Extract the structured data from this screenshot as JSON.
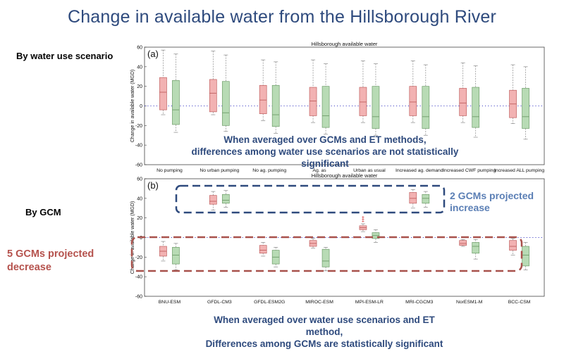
{
  "slide": {
    "title": "Change in available water from the Hillsborough River",
    "label_top": "By water use scenario",
    "label_bottom": "By GCM",
    "note_top": [
      "When averaged over GCMs and ET methods,",
      "differences among water use scenarios are not statistically",
      "significant"
    ],
    "note_bottom": [
      "When averaged over water use scenarios and ET",
      "method,",
      "Differences among GCMs are statistically significant"
    ],
    "callout_increase": [
      "2 GCMs projected",
      "increase"
    ],
    "callout_decrease": [
      "5 GCMs projected",
      "decrease"
    ]
  },
  "colors": {
    "red_fill": "#f2b2b2",
    "red_edge": "#c06060",
    "green_fill": "#b8dbb5",
    "green_edge": "#6f9d6a",
    "ref_line": "#4a4ac8",
    "dash_blue": "#2e4a7d",
    "dash_red": "#a8514b"
  },
  "chart_data": [
    {
      "type": "box",
      "panel": "(a)",
      "title": "Hillsborough available water",
      "ylabel": "Change in available water (MGD)",
      "ylim": [
        -60,
        60
      ],
      "yticks": [
        -60,
        -40,
        -20,
        0,
        20,
        40,
        60
      ],
      "reference_line": 0,
      "categories": [
        "No pumping",
        "No urban pumping",
        "No ag. pumping",
        "Ag. as usual",
        "Urban as usual",
        "Increased ag. demand",
        "Increased CWF pumping",
        "Increased ALL pumping"
      ],
      "tick_labels": [
        "No pumping",
        "No urban pumping",
        "No ag. pumping",
        "Ag. as",
        "Urban as usual",
        "Increased ag. demand",
        "Increased CWF pumping",
        "Increased ALL pumping"
      ],
      "series": [
        {
          "color": "red",
          "boxes": [
            {
              "wlo": -9,
              "q1": -4,
              "med": 14,
              "q3": 29,
              "whi": 57
            },
            {
              "wlo": -9,
              "q1": -6,
              "med": 13,
              "q3": 27,
              "whi": 56
            },
            {
              "wlo": -15,
              "q1": -8,
              "med": 6,
              "q3": 21,
              "whi": 47
            },
            {
              "wlo": -17,
              "q1": -10,
              "med": 5,
              "q3": 19,
              "whi": 47
            },
            {
              "wlo": -17,
              "q1": -10,
              "med": 4,
              "q3": 19,
              "whi": 46
            },
            {
              "wlo": -17,
              "q1": -10,
              "med": 4,
              "q3": 20,
              "whi": 46
            },
            {
              "wlo": -17,
              "q1": -10,
              "med": 3,
              "q3": 18,
              "whi": 44
            },
            {
              "wlo": -18,
              "q1": -12,
              "med": 2,
              "q3": 16,
              "whi": 42
            }
          ]
        },
        {
          "color": "green",
          "boxes": [
            {
              "wlo": -27,
              "q1": -19,
              "med": -4,
              "q3": 26,
              "whi": 53
            },
            {
              "wlo": -26,
              "q1": -20,
              "med": -7,
              "q3": 25,
              "whi": 52
            },
            {
              "wlo": -28,
              "q1": -21,
              "med": -9,
              "q3": 21,
              "whi": 45
            },
            {
              "wlo": -29,
              "q1": -22,
              "med": -10,
              "q3": 20,
              "whi": 43
            },
            {
              "wlo": -30,
              "q1": -23,
              "med": -11,
              "q3": 20,
              "whi": 43
            },
            {
              "wlo": -30,
              "q1": -23,
              "med": -11,
              "q3": 20,
              "whi": 42
            },
            {
              "wlo": -32,
              "q1": -22,
              "med": -11,
              "q3": 19,
              "whi": 41
            },
            {
              "wlo": -34,
              "q1": -23,
              "med": -11,
              "q3": 18,
              "whi": 40
            }
          ]
        }
      ]
    },
    {
      "type": "box",
      "panel": "(b)",
      "title": "Hillsborough available water",
      "ylabel": "Change in available water (MGD)",
      "ylim": [
        -60,
        60
      ],
      "yticks": [
        -60,
        -40,
        -20,
        0,
        20,
        40,
        60
      ],
      "reference_line": 0,
      "categories": [
        "BNU-ESM",
        "GFDL-CM3",
        "GFDL-ESM2G",
        "MIROC-ESM",
        "MPI-ESM-LR",
        "MRI-CGCM3",
        "NorESM1-M",
        "BCC-CSM"
      ],
      "series": [
        {
          "color": "red",
          "boxes": [
            {
              "wlo": -24,
              "q1": -19,
              "med": -14,
              "q3": -9,
              "whi": -4
            },
            {
              "wlo": 28,
              "q1": 34,
              "med": 37,
              "q3": 43,
              "whi": 47
            },
            {
              "wlo": -19,
              "q1": -16,
              "med": -13,
              "q3": -8,
              "whi": -5
            },
            {
              "wlo": -11,
              "q1": -9,
              "med": -6,
              "q3": -3,
              "whi": -1
            },
            {
              "wlo": 6,
              "q1": 8,
              "med": 10,
              "q3": 12,
              "whi": 14
            },
            {
              "wlo": 30,
              "q1": 35,
              "med": 40,
              "q3": 46,
              "whi": 49
            },
            {
              "wlo": -9,
              "q1": -8,
              "med": -6,
              "q3": -3,
              "whi": -2
            },
            {
              "wlo": -18,
              "q1": -13,
              "med": -9,
              "q3": -3,
              "whi": -1
            }
          ],
          "outliers": [
            {
              "cat": 4,
              "values": [
                17,
                19,
                21
              ]
            }
          ]
        },
        {
          "color": "green",
          "boxes": [
            {
              "wlo": -33,
              "q1": -27,
              "med": -18,
              "q3": -10,
              "whi": -6
            },
            {
              "wlo": 31,
              "q1": 35,
              "med": 38,
              "q3": 44,
              "whi": 48
            },
            {
              "wlo": -30,
              "q1": -27,
              "med": -20,
              "q3": -13,
              "whi": -10
            },
            {
              "wlo": -34,
              "q1": -30,
              "med": -24,
              "q3": -12,
              "whi": -10
            },
            {
              "wlo": -5,
              "q1": -1,
              "med": 2,
              "q3": 5,
              "whi": 8
            },
            {
              "wlo": 31,
              "q1": 35,
              "med": 40,
              "q3": 44,
              "whi": 47
            },
            {
              "wlo": -22,
              "q1": -16,
              "med": -9,
              "q3": -5,
              "whi": -2
            },
            {
              "wlo": -33,
              "q1": -29,
              "med": -18,
              "q3": -9,
              "whi": -5
            }
          ]
        }
      ]
    }
  ]
}
